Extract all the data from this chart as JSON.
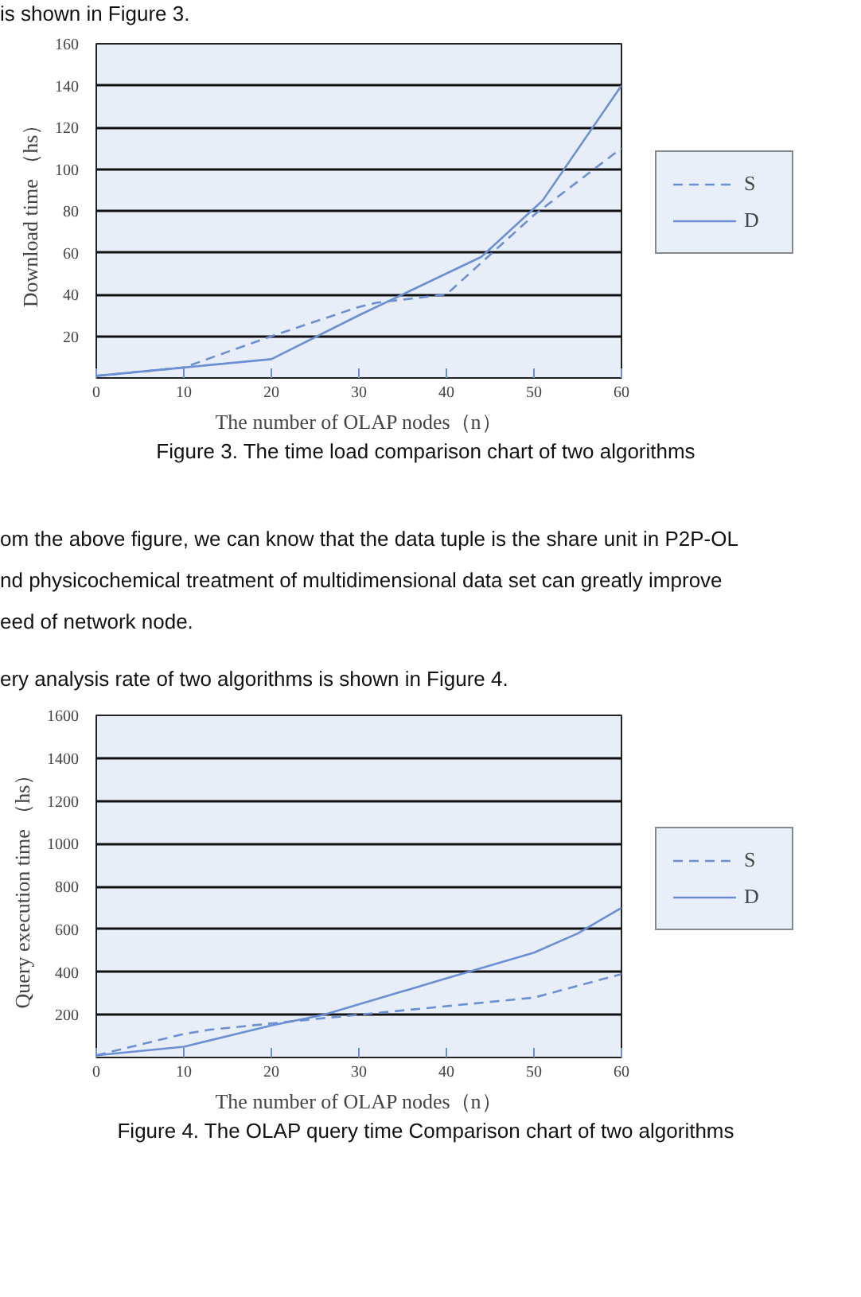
{
  "chart_data": [
    {
      "type": "line",
      "xlabel": "The number of OLAP nodes（n）",
      "ylabel": "Download time （hs）",
      "xlim": [
        0,
        60
      ],
      "ylim": [
        0,
        160
      ],
      "xticks": [
        0,
        10,
        20,
        30,
        40,
        50,
        60
      ],
      "yticks": [
        20,
        40,
        60,
        80,
        100,
        120,
        140,
        160
      ],
      "grid": "y",
      "legend": "right",
      "marker": "none",
      "annotations": [
        "is shown in Figure 3.",
        "Figure 3. The time load comparison chart of two algorithms",
        "om the above figure, we can know that the data tuple is the share unit in P2P-OL",
        "nd physicochemical treatment of multidimensional data set can greatly improve",
        "eed of network node.",
        "ery analysis rate of two algorithms is shown in Figure 4."
      ],
      "series": [
        {
          "name": "S",
          "color": "#6b8fd4",
          "line_style": "dashed",
          "x": [
            0,
            10,
            20,
            30,
            32,
            40,
            50,
            60
          ],
          "values": [
            1,
            5,
            20,
            34,
            36,
            40,
            78,
            110
          ]
        },
        {
          "name": "D",
          "color": "#6b8fd4",
          "line_style": "solid",
          "x": [
            0,
            10,
            20,
            30,
            44,
            51,
            60
          ],
          "values": [
            1,
            5,
            9,
            30,
            58,
            85,
            140
          ]
        }
      ]
    },
    {
      "type": "line",
      "xlabel": "The number of OLAP nodes（n）",
      "ylabel": "Query execution time （hs）",
      "xlim": [
        0,
        60
      ],
      "ylim": [
        0,
        1600
      ],
      "xticks": [
        0,
        10,
        20,
        30,
        40,
        50,
        60
      ],
      "yticks": [
        200,
        400,
        600,
        800,
        1000,
        1200,
        1400,
        1600
      ],
      "grid": "y",
      "legend": "right",
      "marker": "none",
      "annotations": [
        "Figure 4. The OLAP query time Comparison chart of two algorithms"
      ],
      "series": [
        {
          "name": "S",
          "color": "#6b8fd4",
          "line_style": "dashed",
          "x": [
            0,
            10,
            13,
            25,
            30,
            40,
            50,
            60
          ],
          "values": [
            10,
            110,
            130,
            180,
            200,
            240,
            280,
            390
          ]
        },
        {
          "name": "D",
          "color": "#6b8fd4",
          "line_style": "solid",
          "x": [
            0,
            10,
            20,
            26,
            40,
            50,
            55,
            60
          ],
          "values": [
            10,
            50,
            150,
            200,
            370,
            490,
            580,
            700
          ]
        }
      ]
    }
  ]
}
